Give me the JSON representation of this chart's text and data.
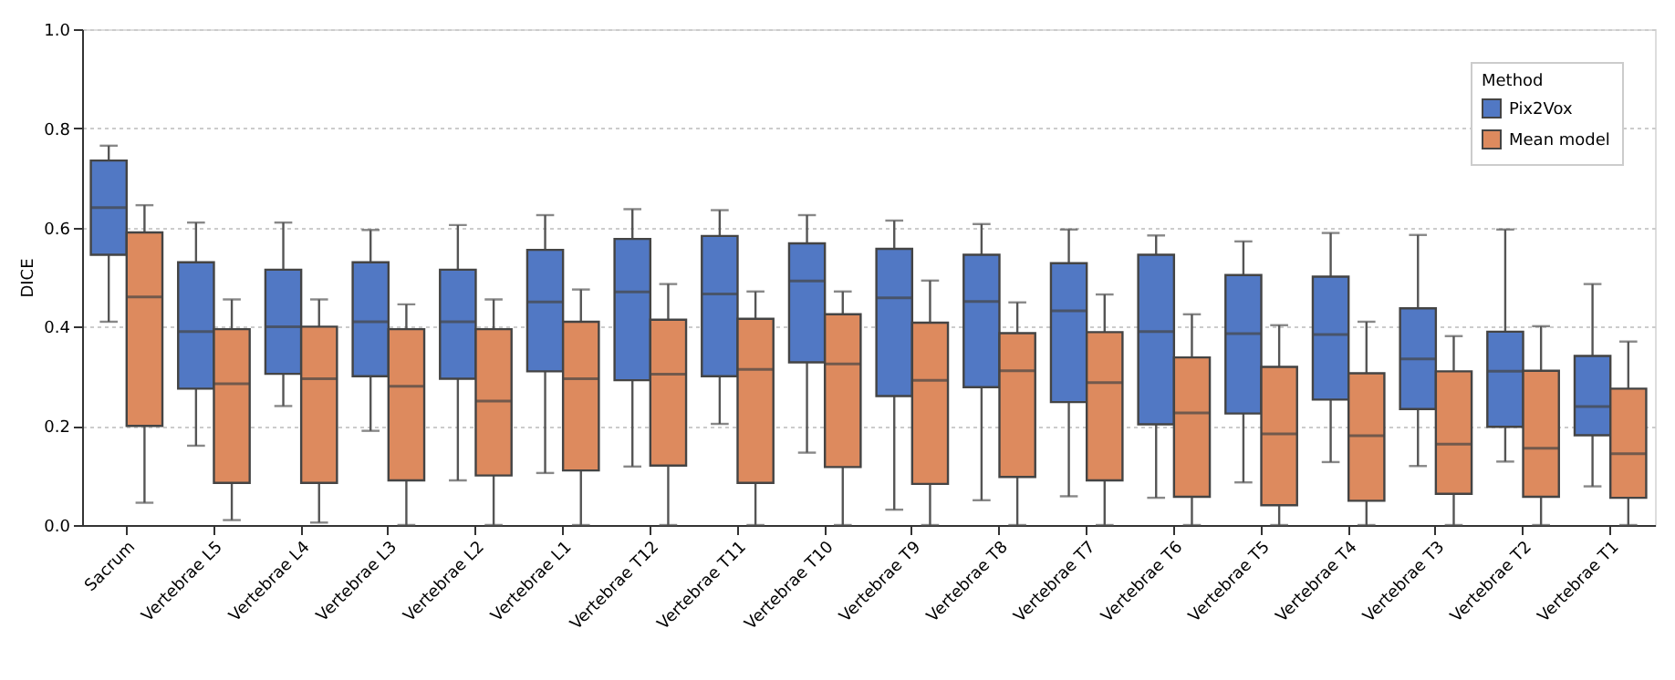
{
  "chart_data": {
    "type": "box",
    "ylabel": "DICE",
    "legend_title": "Method",
    "legend": "top right",
    "grid": "y",
    "categories": [
      "Sacrum",
      "Vertebrae L5",
      "Vertebrae L4",
      "Vertebrae L3",
      "Vertebrae L2",
      "Vertebrae L1",
      "Vertebrae T12",
      "Vertebrae T11",
      "Vertebrae T10",
      "Vertebrae T9",
      "Vertebrae T8",
      "Vertebrae T7",
      "Vertebrae T6",
      "Vertebrae T5",
      "Vertebrae T4",
      "Vertebrae T3",
      "Vertebrae T2",
      "Vertebrae T1"
    ],
    "ylim": [
      0,
      1
    ],
    "yticks": [
      {
        "value": 0,
        "label": "0.0"
      },
      {
        "value": 0.2,
        "label": "0.2"
      },
      {
        "value": 0.4,
        "label": "0.4"
      },
      {
        "value": 0.6,
        "label": "0.6"
      },
      {
        "value": 0.8,
        "label": "0.8"
      },
      {
        "value": 1,
        "label": "1.0"
      }
    ],
    "series": [
      {
        "name": "Pix2Vox",
        "color": "#5178c4",
        "boxes": [
          {
            "low": 0.41,
            "q1": 0.545,
            "median": 0.64,
            "q3": 0.735,
            "high": 0.765
          },
          {
            "low": 0.16,
            "q1": 0.275,
            "median": 0.39,
            "q3": 0.53,
            "high": 0.61
          },
          {
            "low": 0.24,
            "q1": 0.305,
            "median": 0.4,
            "q3": 0.515,
            "high": 0.61
          },
          {
            "low": 0.19,
            "q1": 0.3,
            "median": 0.41,
            "q3": 0.53,
            "high": 0.595
          },
          {
            "low": 0.09,
            "q1": 0.295,
            "median": 0.41,
            "q3": 0.515,
            "high": 0.605
          },
          {
            "low": 0.105,
            "q1": 0.31,
            "median": 0.45,
            "q3": 0.555,
            "high": 0.625
          },
          {
            "low": 0.118,
            "q1": 0.292,
            "median": 0.47,
            "q3": 0.577,
            "high": 0.637
          },
          {
            "low": 0.204,
            "q1": 0.3,
            "median": 0.466,
            "q3": 0.583,
            "high": 0.635
          },
          {
            "low": 0.146,
            "q1": 0.328,
            "median": 0.492,
            "q3": 0.568,
            "high": 0.625
          },
          {
            "low": 0.031,
            "q1": 0.26,
            "median": 0.458,
            "q3": 0.557,
            "high": 0.614
          },
          {
            "low": 0.05,
            "q1": 0.278,
            "median": 0.451,
            "q3": 0.545,
            "high": 0.607
          },
          {
            "low": 0.058,
            "q1": 0.248,
            "median": 0.432,
            "q3": 0.528,
            "high": 0.596
          },
          {
            "low": 0.055,
            "q1": 0.203,
            "median": 0.39,
            "q3": 0.545,
            "high": 0.584
          },
          {
            "low": 0.086,
            "q1": 0.225,
            "median": 0.386,
            "q3": 0.504,
            "high": 0.572
          },
          {
            "low": 0.127,
            "q1": 0.253,
            "median": 0.384,
            "q3": 0.501,
            "high": 0.589
          },
          {
            "low": 0.119,
            "q1": 0.234,
            "median": 0.335,
            "q3": 0.437,
            "high": 0.585
          },
          {
            "low": 0.128,
            "q1": 0.198,
            "median": 0.31,
            "q3": 0.39,
            "high": 0.596
          },
          {
            "low": 0.078,
            "q1": 0.181,
            "median": 0.239,
            "q3": 0.341,
            "high": 0.486
          }
        ]
      },
      {
        "name": "Mean model",
        "color": "#dd8a5e",
        "boxes": [
          {
            "low": 0.045,
            "q1": 0.2,
            "median": 0.46,
            "q3": 0.59,
            "high": 0.645
          },
          {
            "low": 0.01,
            "q1": 0.085,
            "median": 0.285,
            "q3": 0.395,
            "high": 0.455
          },
          {
            "low": 0.005,
            "q1": 0.085,
            "median": 0.295,
            "q3": 0.4,
            "high": 0.455
          },
          {
            "low": 0.0,
            "q1": 0.09,
            "median": 0.28,
            "q3": 0.395,
            "high": 0.445
          },
          {
            "low": 0.0,
            "q1": 0.1,
            "median": 0.25,
            "q3": 0.395,
            "high": 0.455
          },
          {
            "low": 0.0,
            "q1": 0.11,
            "median": 0.295,
            "q3": 0.41,
            "high": 0.475
          },
          {
            "low": 0.0,
            "q1": 0.12,
            "median": 0.304,
            "q3": 0.414,
            "high": 0.486
          },
          {
            "low": 0.0,
            "q1": 0.085,
            "median": 0.314,
            "q3": 0.416,
            "high": 0.471
          },
          {
            "low": 0.0,
            "q1": 0.117,
            "median": 0.325,
            "q3": 0.425,
            "high": 0.471
          },
          {
            "low": 0.0,
            "q1": 0.083,
            "median": 0.292,
            "q3": 0.408,
            "high": 0.493
          },
          {
            "low": 0.0,
            "q1": 0.097,
            "median": 0.311,
            "q3": 0.387,
            "high": 0.449
          },
          {
            "low": 0.0,
            "q1": 0.09,
            "median": 0.287,
            "q3": 0.389,
            "high": 0.465
          },
          {
            "low": 0.0,
            "q1": 0.057,
            "median": 0.226,
            "q3": 0.338,
            "high": 0.425
          },
          {
            "low": 0.0,
            "q1": 0.04,
            "median": 0.184,
            "q3": 0.319,
            "high": 0.403
          },
          {
            "low": 0.0,
            "q1": 0.049,
            "median": 0.18,
            "q3": 0.306,
            "high": 0.41
          },
          {
            "low": 0.0,
            "q1": 0.063,
            "median": 0.163,
            "q3": 0.31,
            "high": 0.381
          },
          {
            "low": 0.0,
            "q1": 0.057,
            "median": 0.155,
            "q3": 0.311,
            "high": 0.401
          },
          {
            "low": 0.0,
            "q1": 0.055,
            "median": 0.144,
            "q3": 0.275,
            "high": 0.37
          }
        ]
      }
    ]
  }
}
